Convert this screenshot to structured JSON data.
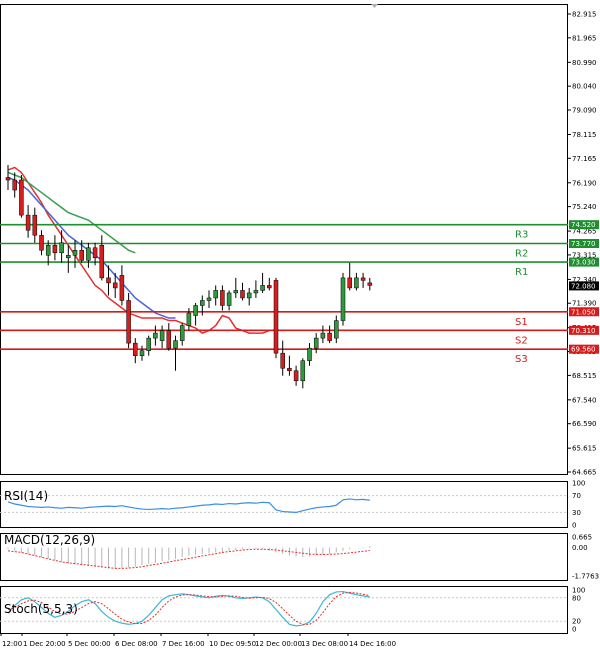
{
  "chart_data": {
    "type": "candlestick",
    "colors": {
      "up": "#2f9a3c",
      "down": "#d51f1f",
      "ma_red": "#e53030",
      "ma_blue": "#4a63d6",
      "ma_green": "#36a04f",
      "resistance": "#1e8e2e",
      "support": "#d81a1a",
      "rsi": "#3a8ee6",
      "macd_hist": "#b7b7b7",
      "macd_signal": "#e53030",
      "stoch_main": "#3ab8d8",
      "stoch_signal": "#e53030",
      "price_tag": "#000000"
    },
    "y_axis": {
      "min": 64.665,
      "max": 82.915,
      "ticks": [
        "82.915",
        "81.965",
        "80.990",
        "80.040",
        "79.090",
        "78.115",
        "77.165",
        "76.190",
        "75.240",
        "74.265",
        "73.315",
        "72.340",
        "71.390",
        "70.415",
        "69.465",
        "68.515",
        "67.540",
        "66.590",
        "65.615",
        "64.665"
      ]
    },
    "x_labels": [
      "12:00",
      "1 Dec 20:00",
      "5 Dec 00:00",
      "6 Dec 08:00",
      "7 Dec 16:00",
      "10 Dec 09:50",
      "12 Dec 00:00",
      "13 Dec 08:00",
      "14 Dec 16:00"
    ],
    "candles": [
      [
        76.4,
        76.9,
        75.9,
        76.3
      ],
      [
        76.3,
        76.6,
        75.6,
        75.9
      ],
      [
        76.3,
        76.5,
        74.8,
        74.9
      ],
      [
        74.9,
        75.3,
        74.0,
        74.3
      ],
      [
        74.9,
        75.2,
        73.8,
        74.1
      ],
      [
        74.1,
        74.3,
        73.3,
        73.5
      ],
      [
        73.3,
        73.9,
        72.9,
        73.7
      ],
      [
        73.7,
        74.1,
        73.1,
        73.4
      ],
      [
        73.4,
        74.3,
        73.0,
        73.8
      ],
      [
        73.2,
        73.7,
        72.6,
        73.3
      ],
      [
        73.3,
        73.9,
        72.8,
        73.5
      ],
      [
        73.5,
        73.9,
        73.0,
        73.1
      ],
      [
        73.1,
        73.8,
        72.8,
        73.6
      ],
      [
        73.6,
        73.8,
        72.9,
        73.2
      ],
      [
        73.7,
        74.1,
        72.3,
        72.4
      ],
      [
        72.4,
        72.9,
        71.7,
        72.2
      ],
      [
        72.2,
        72.6,
        71.6,
        72.0
      ],
      [
        72.5,
        72.9,
        71.3,
        71.5
      ],
      [
        71.5,
        71.8,
        69.6,
        69.8
      ],
      [
        69.8,
        70.0,
        69.0,
        69.3
      ],
      [
        69.3,
        69.7,
        69.1,
        69.5
      ],
      [
        69.5,
        70.1,
        69.3,
        70.0
      ],
      [
        70.0,
        70.5,
        69.7,
        70.2
      ],
      [
        69.9,
        70.5,
        69.6,
        70.3
      ],
      [
        70.3,
        70.6,
        69.5,
        69.6
      ],
      [
        69.6,
        70.1,
        68.7,
        69.9
      ],
      [
        69.9,
        70.6,
        69.7,
        70.5
      ],
      [
        70.5,
        71.2,
        70.3,
        71.0
      ],
      [
        70.9,
        71.4,
        70.5,
        71.3
      ],
      [
        71.3,
        71.7,
        70.9,
        71.5
      ],
      [
        71.5,
        71.9,
        71.2,
        71.6
      ],
      [
        71.6,
        72.1,
        71.3,
        71.9
      ],
      [
        71.9,
        72.1,
        71.1,
        71.3
      ],
      [
        71.3,
        71.9,
        71.1,
        71.8
      ],
      [
        71.8,
        72.4,
        71.6,
        71.9
      ],
      [
        71.9,
        72.2,
        71.5,
        71.6
      ],
      [
        71.6,
        72.0,
        71.3,
        71.8
      ],
      [
        71.8,
        72.3,
        71.6,
        71.9
      ],
      [
        71.9,
        72.6,
        71.8,
        72.1
      ],
      [
        72.1,
        72.4,
        71.9,
        72.0
      ],
      [
        72.3,
        72.4,
        69.2,
        69.4
      ],
      [
        69.4,
        69.9,
        68.5,
        68.8
      ],
      [
        68.8,
        69.3,
        68.5,
        68.7
      ],
      [
        68.7,
        68.9,
        68.1,
        68.3
      ],
      [
        68.3,
        69.2,
        68.0,
        69.1
      ],
      [
        69.1,
        69.8,
        68.9,
        69.6
      ],
      [
        69.6,
        70.2,
        69.4,
        70.0
      ],
      [
        70.0,
        70.5,
        69.8,
        70.2
      ],
      [
        70.2,
        70.5,
        69.8,
        69.9
      ],
      [
        70.0,
        70.9,
        69.8,
        70.7
      ],
      [
        70.7,
        72.6,
        70.5,
        72.4
      ],
      [
        72.4,
        73.0,
        71.9,
        72.0
      ],
      [
        72.0,
        72.6,
        71.9,
        72.4
      ],
      [
        72.4,
        72.6,
        72.0,
        72.3
      ],
      [
        72.2,
        72.4,
        71.9,
        72.1
      ]
    ],
    "moving_averages": [
      {
        "color": "#e53030",
        "values": [
          76.7,
          76.8,
          76.6,
          76.2,
          75.8,
          75.4,
          74.9,
          74.5,
          74.1,
          73.7,
          73.3,
          72.9,
          72.5,
          72.1,
          71.9,
          71.6,
          71.4,
          71.2,
          71.0,
          70.9,
          70.8,
          70.8,
          70.8,
          70.8,
          70.7,
          70.7,
          70.6,
          70.5,
          70.4,
          70.2,
          70.3,
          70.5,
          70.9,
          70.8,
          70.4,
          70.3,
          70.2,
          70.2,
          70.2,
          70.3
        ]
      },
      {
        "color": "#4a63d6",
        "values": [
          76.4,
          76.3,
          76.1,
          75.9,
          75.6,
          75.3,
          75.0,
          74.7,
          74.4,
          74.1,
          73.9,
          73.7,
          73.5,
          73.3,
          73.1,
          72.8,
          72.5,
          72.2,
          71.9,
          71.6,
          71.4,
          71.2,
          71.0,
          70.9,
          70.8,
          70.8
        ]
      },
      {
        "color": "#36a04f",
        "values": [
          76.6,
          76.5,
          76.4,
          76.2,
          76.0,
          75.8,
          75.6,
          75.4,
          75.2,
          75.0,
          74.9,
          74.8,
          74.7,
          74.5,
          74.3,
          74.1,
          73.9,
          73.7,
          73.5,
          73.4
        ]
      }
    ],
    "levels": [
      {
        "name": "R3",
        "value": 74.52,
        "tag": "74.520",
        "kind": "resistance"
      },
      {
        "name": "R2",
        "value": 73.77,
        "tag": "73.770",
        "kind": "resistance"
      },
      {
        "name": "R1",
        "value": 73.03,
        "tag": "73.030",
        "kind": "resistance"
      },
      {
        "name": "S1",
        "value": 71.05,
        "tag": "71.050",
        "kind": "support"
      },
      {
        "name": "S2",
        "value": 70.31,
        "tag": "70.310",
        "kind": "support"
      },
      {
        "name": "S3",
        "value": 69.56,
        "tag": "69.560",
        "kind": "support"
      }
    ],
    "current_price": {
      "value": 72.08,
      "tag": "72.080"
    },
    "rsi": {
      "label": "RSI(14)",
      "ylim": [
        0,
        100
      ],
      "ticks": [
        "100",
        "70",
        "30",
        "0"
      ],
      "values": [
        55,
        50,
        47,
        44,
        43,
        42,
        43,
        41,
        40,
        42,
        41,
        40,
        42,
        43,
        44,
        45,
        44,
        46,
        43,
        40,
        38,
        37,
        38,
        39,
        38,
        40,
        41,
        43,
        45,
        47,
        48,
        50,
        49,
        51,
        50,
        52,
        53,
        52,
        54,
        53,
        36,
        32,
        31,
        30,
        34,
        38,
        41,
        43,
        44,
        47,
        60,
        62,
        60,
        61,
        59
      ]
    },
    "macd": {
      "label": "MACD(12,26,9)",
      "ylim": [
        -1.7763,
        0.665
      ],
      "ticks": [
        "0.665",
        "0.00",
        "-1.7763"
      ],
      "histogram": [
        -0.1,
        -0.2,
        -0.3,
        -0.4,
        -0.5,
        -0.6,
        -0.7,
        -0.8,
        -0.9,
        -1.0,
        -1.05,
        -1.1,
        -1.15,
        -1.2,
        -1.25,
        -1.3,
        -1.35,
        -1.3,
        -1.25,
        -1.2,
        -1.1,
        -1.0,
        -0.95,
        -0.85,
        -0.8,
        -0.7,
        -0.6,
        -0.5,
        -0.45,
        -0.4,
        -0.35,
        -0.3,
        -0.25,
        -0.2,
        -0.15,
        -0.1,
        -0.05,
        -0.05,
        -0.1,
        -0.2,
        -0.3,
        -0.4,
        -0.5,
        -0.55,
        -0.6,
        -0.55,
        -0.5,
        -0.45,
        -0.4,
        -0.3,
        -0.2,
        -0.1,
        0.0,
        0.05,
        0.1
      ],
      "signal": [
        -0.2,
        -0.25,
        -0.3,
        -0.4,
        -0.5,
        -0.6,
        -0.7,
        -0.8,
        -0.9,
        -0.95,
        -1.0,
        -1.05,
        -1.1,
        -1.15,
        -1.2,
        -1.25,
        -1.3,
        -1.3,
        -1.28,
        -1.25,
        -1.2,
        -1.12,
        -1.05,
        -0.98,
        -0.9,
        -0.82,
        -0.75,
        -0.68,
        -0.6,
        -0.52,
        -0.45,
        -0.38,
        -0.3,
        -0.25,
        -0.2,
        -0.15,
        -0.12,
        -0.1,
        -0.1,
        -0.12,
        -0.15,
        -0.2,
        -0.25,
        -0.3,
        -0.35,
        -0.4,
        -0.42,
        -0.43,
        -0.42,
        -0.4,
        -0.37,
        -0.33,
        -0.28,
        -0.23,
        -0.18
      ]
    },
    "stoch": {
      "label": "Stoch(5,5,3)",
      "ylim": [
        0,
        100
      ],
      "ticks": [
        "100",
        "80",
        "20",
        "0"
      ],
      "main": [
        40,
        60,
        75,
        80,
        70,
        55,
        40,
        30,
        35,
        45,
        60,
        70,
        75,
        65,
        45,
        30,
        20,
        15,
        12,
        14,
        20,
        35,
        55,
        75,
        85,
        88,
        90,
        88,
        85,
        82,
        80,
        84,
        86,
        84,
        80,
        78,
        80,
        82,
        80,
        70,
        50,
        30,
        12,
        8,
        10,
        18,
        40,
        70,
        88,
        95,
        96,
        92,
        88,
        85,
        82
      ],
      "signal": [
        50,
        55,
        65,
        72,
        74,
        68,
        56,
        45,
        38,
        38,
        45,
        55,
        65,
        70,
        65,
        52,
        38,
        25,
        18,
        14,
        14,
        22,
        36,
        55,
        72,
        82,
        87,
        88,
        87,
        85,
        83,
        82,
        84,
        85,
        84,
        81,
        79,
        80,
        81,
        78,
        68,
        52,
        35,
        20,
        12,
        12,
        22,
        42,
        65,
        83,
        92,
        94,
        92,
        89,
        86
      ]
    }
  }
}
